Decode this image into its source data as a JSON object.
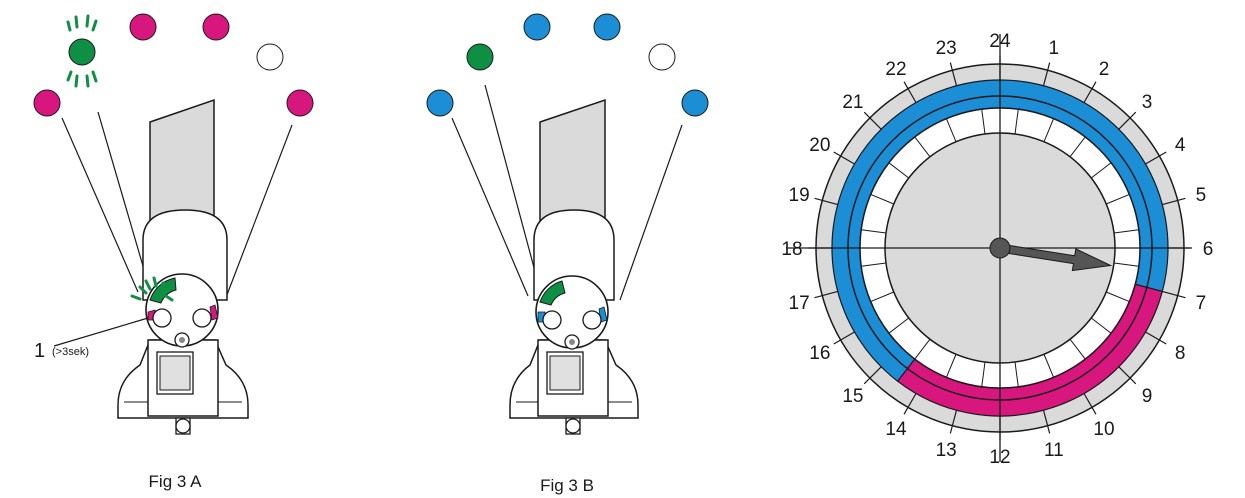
{
  "colors": {
    "magenta": "#d8177e",
    "green": "#0e8f44",
    "blue": "#1b8ed6",
    "gray": "#dadada",
    "dark_gray": "#555555"
  },
  "fig_a": {
    "caption": "Fig 3 A",
    "callout_number": "1",
    "callout_note": "(>3sek)",
    "leds": [
      "magenta",
      "green",
      "magenta",
      "magenta",
      "white",
      "magenta"
    ]
  },
  "fig_b": {
    "caption": "Fig 3 B",
    "leds": [
      "blue",
      "green",
      "blue",
      "blue",
      "white",
      "blue"
    ]
  },
  "clock": {
    "hour_labels": [
      "24",
      "1",
      "2",
      "3",
      "4",
      "5",
      "6",
      "7",
      "8",
      "9",
      "10",
      "11",
      "12",
      "13",
      "14",
      "15",
      "16",
      "17",
      "18",
      "19",
      "20",
      "21",
      "22",
      "23"
    ],
    "blue_segment_hours": [
      14.5,
      7.0
    ],
    "magenta_segment_hours": [
      7.0,
      14.5
    ],
    "pointer_hour": 6.6,
    "inner_ticks": 24
  }
}
